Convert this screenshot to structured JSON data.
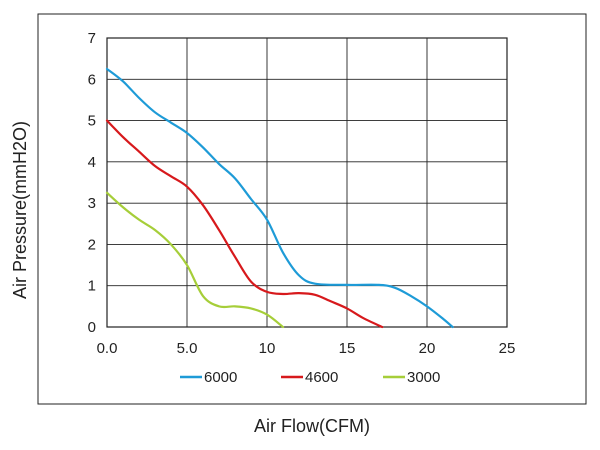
{
  "chart_data": {
    "type": "line",
    "title": "",
    "xlabel": "Air Flow(CFM)",
    "ylabel": "Air Pressure(mmH2O)",
    "xlim": [
      0,
      25
    ],
    "ylim": [
      0,
      7
    ],
    "x_ticks": [
      {
        "value": 0,
        "label": "0.0"
      },
      {
        "value": 5,
        "label": "5.0"
      },
      {
        "value": 10,
        "label": "10"
      },
      {
        "value": 15,
        "label": "15"
      },
      {
        "value": 20,
        "label": "20"
      },
      {
        "value": 25,
        "label": "25"
      }
    ],
    "y_ticks": [
      {
        "value": 0,
        "label": "0"
      },
      {
        "value": 1,
        "label": "1"
      },
      {
        "value": 2,
        "label": "2"
      },
      {
        "value": 3,
        "label": "3"
      },
      {
        "value": 4,
        "label": "4"
      },
      {
        "value": 5,
        "label": "5"
      },
      {
        "value": 6,
        "label": "6"
      },
      {
        "value": 7,
        "label": "7"
      }
    ],
    "grid": true,
    "legend_position": "bottom",
    "series": [
      {
        "name": "6000",
        "color": "#1e9bd7",
        "points": [
          [
            0,
            6.25
          ],
          [
            1,
            5.95
          ],
          [
            2,
            5.55
          ],
          [
            3,
            5.2
          ],
          [
            4,
            4.95
          ],
          [
            5,
            4.7
          ],
          [
            6,
            4.35
          ],
          [
            7,
            3.95
          ],
          [
            8,
            3.6
          ],
          [
            9,
            3.1
          ],
          [
            10,
            2.6
          ],
          [
            11,
            1.8
          ],
          [
            12,
            1.25
          ],
          [
            13,
            1.05
          ],
          [
            15,
            1.02
          ],
          [
            17,
            1.02
          ],
          [
            18,
            0.95
          ],
          [
            19,
            0.75
          ],
          [
            20,
            0.5
          ],
          [
            21,
            0.2
          ],
          [
            21.6,
            0.0
          ]
        ]
      },
      {
        "name": "4600",
        "color": "#d7191c",
        "points": [
          [
            0,
            5.0
          ],
          [
            1,
            4.6
          ],
          [
            2,
            4.25
          ],
          [
            3,
            3.9
          ],
          [
            4,
            3.65
          ],
          [
            5,
            3.4
          ],
          [
            6,
            2.95
          ],
          [
            7,
            2.35
          ],
          [
            8,
            1.7
          ],
          [
            9,
            1.1
          ],
          [
            10,
            0.85
          ],
          [
            11,
            0.8
          ],
          [
            12,
            0.82
          ],
          [
            13,
            0.78
          ],
          [
            14,
            0.62
          ],
          [
            15,
            0.45
          ],
          [
            16,
            0.22
          ],
          [
            17.2,
            0.0
          ]
        ]
      },
      {
        "name": "3000",
        "color": "#a6ce39",
        "points": [
          [
            0,
            3.25
          ],
          [
            1,
            2.9
          ],
          [
            2,
            2.6
          ],
          [
            3,
            2.35
          ],
          [
            4,
            2.0
          ],
          [
            5,
            1.5
          ],
          [
            6,
            0.75
          ],
          [
            7,
            0.5
          ],
          [
            8,
            0.5
          ],
          [
            9,
            0.45
          ],
          [
            10,
            0.3
          ],
          [
            11,
            0.0
          ]
        ]
      }
    ]
  }
}
